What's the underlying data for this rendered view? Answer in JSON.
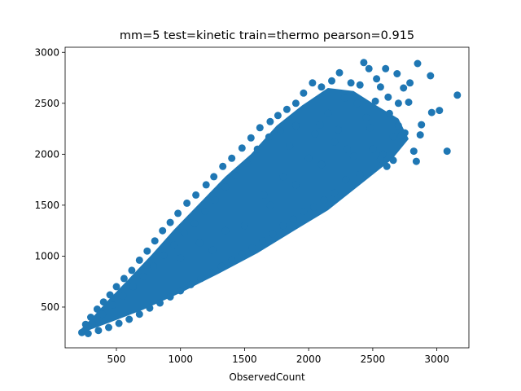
{
  "chart_data": {
    "type": "scatter",
    "title": "mm=5 test=kinetic train=thermo pearson=0.915",
    "xlabel": "ObservedCount",
    "ylabel": "",
    "xlim": [
      100,
      3250
    ],
    "ylim": [
      100,
      3050
    ],
    "xticks": [
      500,
      1000,
      1500,
      2000,
      2500,
      3000
    ],
    "yticks": [
      500,
      1000,
      1500,
      2000,
      2500,
      3000
    ],
    "grid": false,
    "marker_color": "#1f77b4",
    "series": [
      {
        "points": [
          [
            230,
            250
          ],
          [
            260,
            330
          ],
          [
            300,
            400
          ],
          [
            350,
            480
          ],
          [
            400,
            550
          ],
          [
            450,
            620
          ],
          [
            500,
            700
          ],
          [
            560,
            780
          ],
          [
            620,
            860
          ],
          [
            680,
            960
          ],
          [
            740,
            1050
          ],
          [
            800,
            1150
          ],
          [
            860,
            1250
          ],
          [
            920,
            1330
          ],
          [
            980,
            1420
          ],
          [
            1050,
            1520
          ],
          [
            1120,
            1600
          ],
          [
            1200,
            1700
          ],
          [
            1260,
            1780
          ],
          [
            1330,
            1880
          ],
          [
            1400,
            1960
          ],
          [
            1480,
            2060
          ],
          [
            1550,
            2160
          ],
          [
            1620,
            2260
          ],
          [
            1700,
            2320
          ],
          [
            1760,
            2380
          ],
          [
            1830,
            2440
          ],
          [
            1900,
            2500
          ],
          [
            1960,
            2600
          ],
          [
            2030,
            2700
          ],
          [
            2100,
            2660
          ],
          [
            2180,
            2720
          ],
          [
            2240,
            2800
          ],
          [
            2330,
            2700
          ],
          [
            2400,
            2680
          ],
          [
            2470,
            2840
          ],
          [
            2530,
            2740
          ],
          [
            2620,
            2560
          ],
          [
            2690,
            2790
          ],
          [
            2740,
            2650
          ],
          [
            2790,
            2700
          ],
          [
            2850,
            2890
          ],
          [
            2950,
            2770
          ],
          [
            3020,
            2430
          ],
          [
            3160,
            2580
          ],
          [
            3080,
            2030
          ],
          [
            2960,
            2410
          ],
          [
            2870,
            2190
          ],
          [
            2780,
            2510
          ],
          [
            2660,
            2170
          ],
          [
            2580,
            2000
          ],
          [
            2480,
            2260
          ],
          [
            2400,
            1800
          ],
          [
            2350,
            1980
          ],
          [
            2290,
            1750
          ],
          [
            2200,
            1620
          ],
          [
            2120,
            1550
          ],
          [
            2040,
            1480
          ],
          [
            1960,
            1440
          ],
          [
            1880,
            1360
          ],
          [
            1800,
            1300
          ],
          [
            1720,
            1220
          ],
          [
            1640,
            1150
          ],
          [
            1560,
            1080
          ],
          [
            1480,
            1020
          ],
          [
            1400,
            960
          ],
          [
            1320,
            900
          ],
          [
            1240,
            840
          ],
          [
            1160,
            780
          ],
          [
            1080,
            720
          ],
          [
            1000,
            660
          ],
          [
            920,
            600
          ],
          [
            840,
            540
          ],
          [
            760,
            490
          ],
          [
            680,
            430
          ],
          [
            600,
            380
          ],
          [
            520,
            340
          ],
          [
            440,
            300
          ],
          [
            360,
            270
          ],
          [
            280,
            240
          ],
          [
            2750,
            2210
          ],
          [
            2700,
            2280
          ],
          [
            2560,
            1950
          ],
          [
            2500,
            2050
          ],
          [
            2880,
            2290
          ],
          [
            2600,
            2840
          ],
          [
            2560,
            2660
          ],
          [
            2430,
            2900
          ],
          [
            2700,
            2500
          ],
          [
            2840,
            1930
          ],
          [
            2660,
            1940
          ],
          [
            2610,
            1880
          ],
          [
            2230,
            2240
          ],
          [
            2150,
            2400
          ],
          [
            2090,
            2290
          ],
          [
            1850,
            2080
          ],
          [
            1780,
            2230
          ],
          [
            1690,
            2170
          ],
          [
            1600,
            2050
          ],
          [
            1520,
            1910
          ],
          [
            1430,
            1790
          ],
          [
            1350,
            1680
          ],
          [
            1270,
            1550
          ],
          [
            1190,
            1440
          ],
          [
            1110,
            1320
          ],
          [
            1030,
            1230
          ],
          [
            950,
            1110
          ],
          [
            870,
            1010
          ],
          [
            790,
            900
          ],
          [
            710,
            800
          ],
          [
            630,
            700
          ],
          [
            550,
            610
          ],
          [
            470,
            520
          ],
          [
            390,
            430
          ],
          [
            310,
            340
          ],
          [
            1250,
            1060
          ],
          [
            1500,
            1300
          ],
          [
            1700,
            1500
          ],
          [
            1900,
            1700
          ],
          [
            2100,
            1900
          ],
          [
            2300,
            2050
          ],
          [
            1000,
            980
          ],
          [
            1150,
            1130
          ],
          [
            1350,
            1250
          ],
          [
            1650,
            1600
          ],
          [
            1800,
            1780
          ],
          [
            2000,
            1960
          ],
          [
            2200,
            2120
          ],
          [
            2450,
            2360
          ],
          [
            2050,
            2200
          ],
          [
            1900,
            2280
          ],
          [
            2280,
            2550
          ],
          [
            2380,
            2500
          ],
          [
            2520,
            2520
          ],
          [
            2630,
            2400
          ],
          [
            2720,
            2180
          ],
          [
            2820,
            2030
          ]
        ]
      }
    ]
  }
}
